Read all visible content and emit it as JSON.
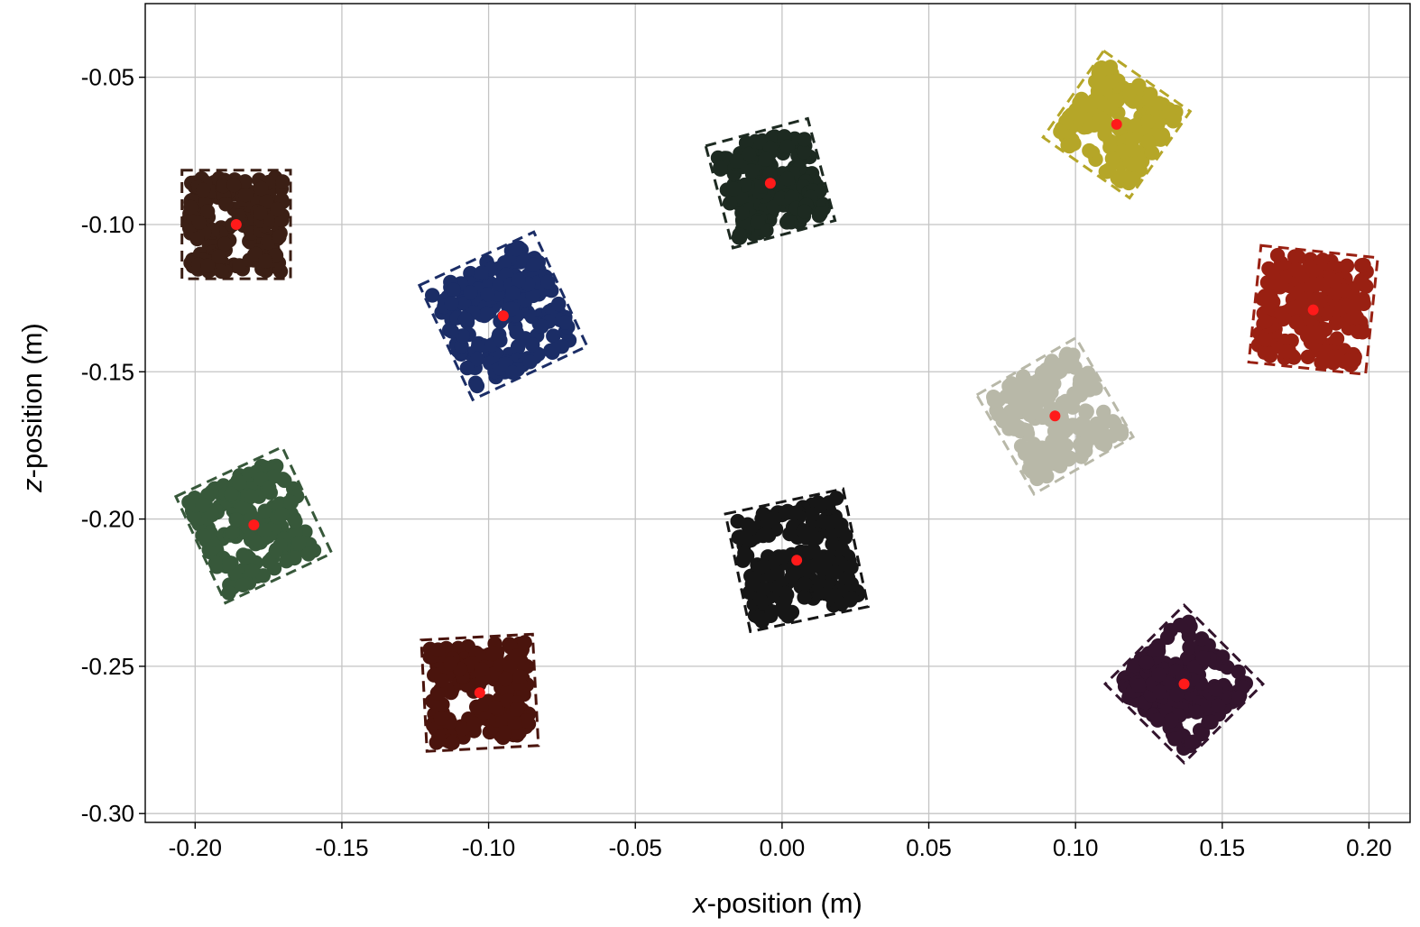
{
  "chart_data": {
    "type": "scatter",
    "title": "",
    "xlabel_italic": "x",
    "xlabel_rest": "-position (m)",
    "ylabel_italic": "z",
    "ylabel_rest": "-position (m)",
    "xlim": [
      -0.217,
      0.214
    ],
    "ylim": [
      -0.303,
      -0.025
    ],
    "x_ticks": [
      -0.2,
      -0.15,
      -0.1,
      -0.05,
      0.0,
      0.05,
      0.1,
      0.15,
      0.2
    ],
    "x_tick_labels": [
      "-0.20",
      "-0.15",
      "-0.10",
      "-0.05",
      "0.00",
      "0.05",
      "0.10",
      "0.15",
      "0.20"
    ],
    "y_ticks": [
      -0.05,
      -0.1,
      -0.15,
      -0.2,
      -0.25,
      -0.3
    ],
    "y_tick_labels": [
      "-0.05",
      "-0.10",
      "-0.15",
      "-0.20",
      "-0.25",
      "-0.30"
    ],
    "grid": true,
    "legend": "none",
    "centroid_color": "#ff1a1a",
    "clusters": [
      {
        "color": "#3b1f15",
        "center": [
          -0.186,
          -0.1
        ],
        "half_size": 0.0185,
        "angle_deg": 0
      },
      {
        "color": "#1b2d66",
        "center": [
          -0.095,
          -0.131
        ],
        "half_size": 0.0215,
        "angle_deg": -25
      },
      {
        "color": "#1d2a21",
        "center": [
          -0.004,
          -0.086
        ],
        "half_size": 0.018,
        "angle_deg": -15
      },
      {
        "color": "#b5a628",
        "center": [
          0.114,
          -0.066
        ],
        "half_size": 0.018,
        "angle_deg": 35
      },
      {
        "color": "#992012",
        "center": [
          0.181,
          -0.129
        ],
        "half_size": 0.02,
        "angle_deg": 6
      },
      {
        "color": "#b8b8a8",
        "center": [
          0.093,
          -0.165
        ],
        "half_size": 0.0195,
        "angle_deg": -30
      },
      {
        "color": "#37583a",
        "center": [
          -0.18,
          -0.202
        ],
        "half_size": 0.02,
        "angle_deg": -25
      },
      {
        "color": "#161616",
        "center": [
          0.005,
          -0.214
        ],
        "half_size": 0.0205,
        "angle_deg": -12
      },
      {
        "color": "#4a140d",
        "center": [
          -0.103,
          -0.259
        ],
        "half_size": 0.019,
        "angle_deg": -3
      },
      {
        "color": "#33142d",
        "center": [
          0.137,
          -0.256
        ],
        "half_size": 0.019,
        "angle_deg": 45
      }
    ]
  }
}
